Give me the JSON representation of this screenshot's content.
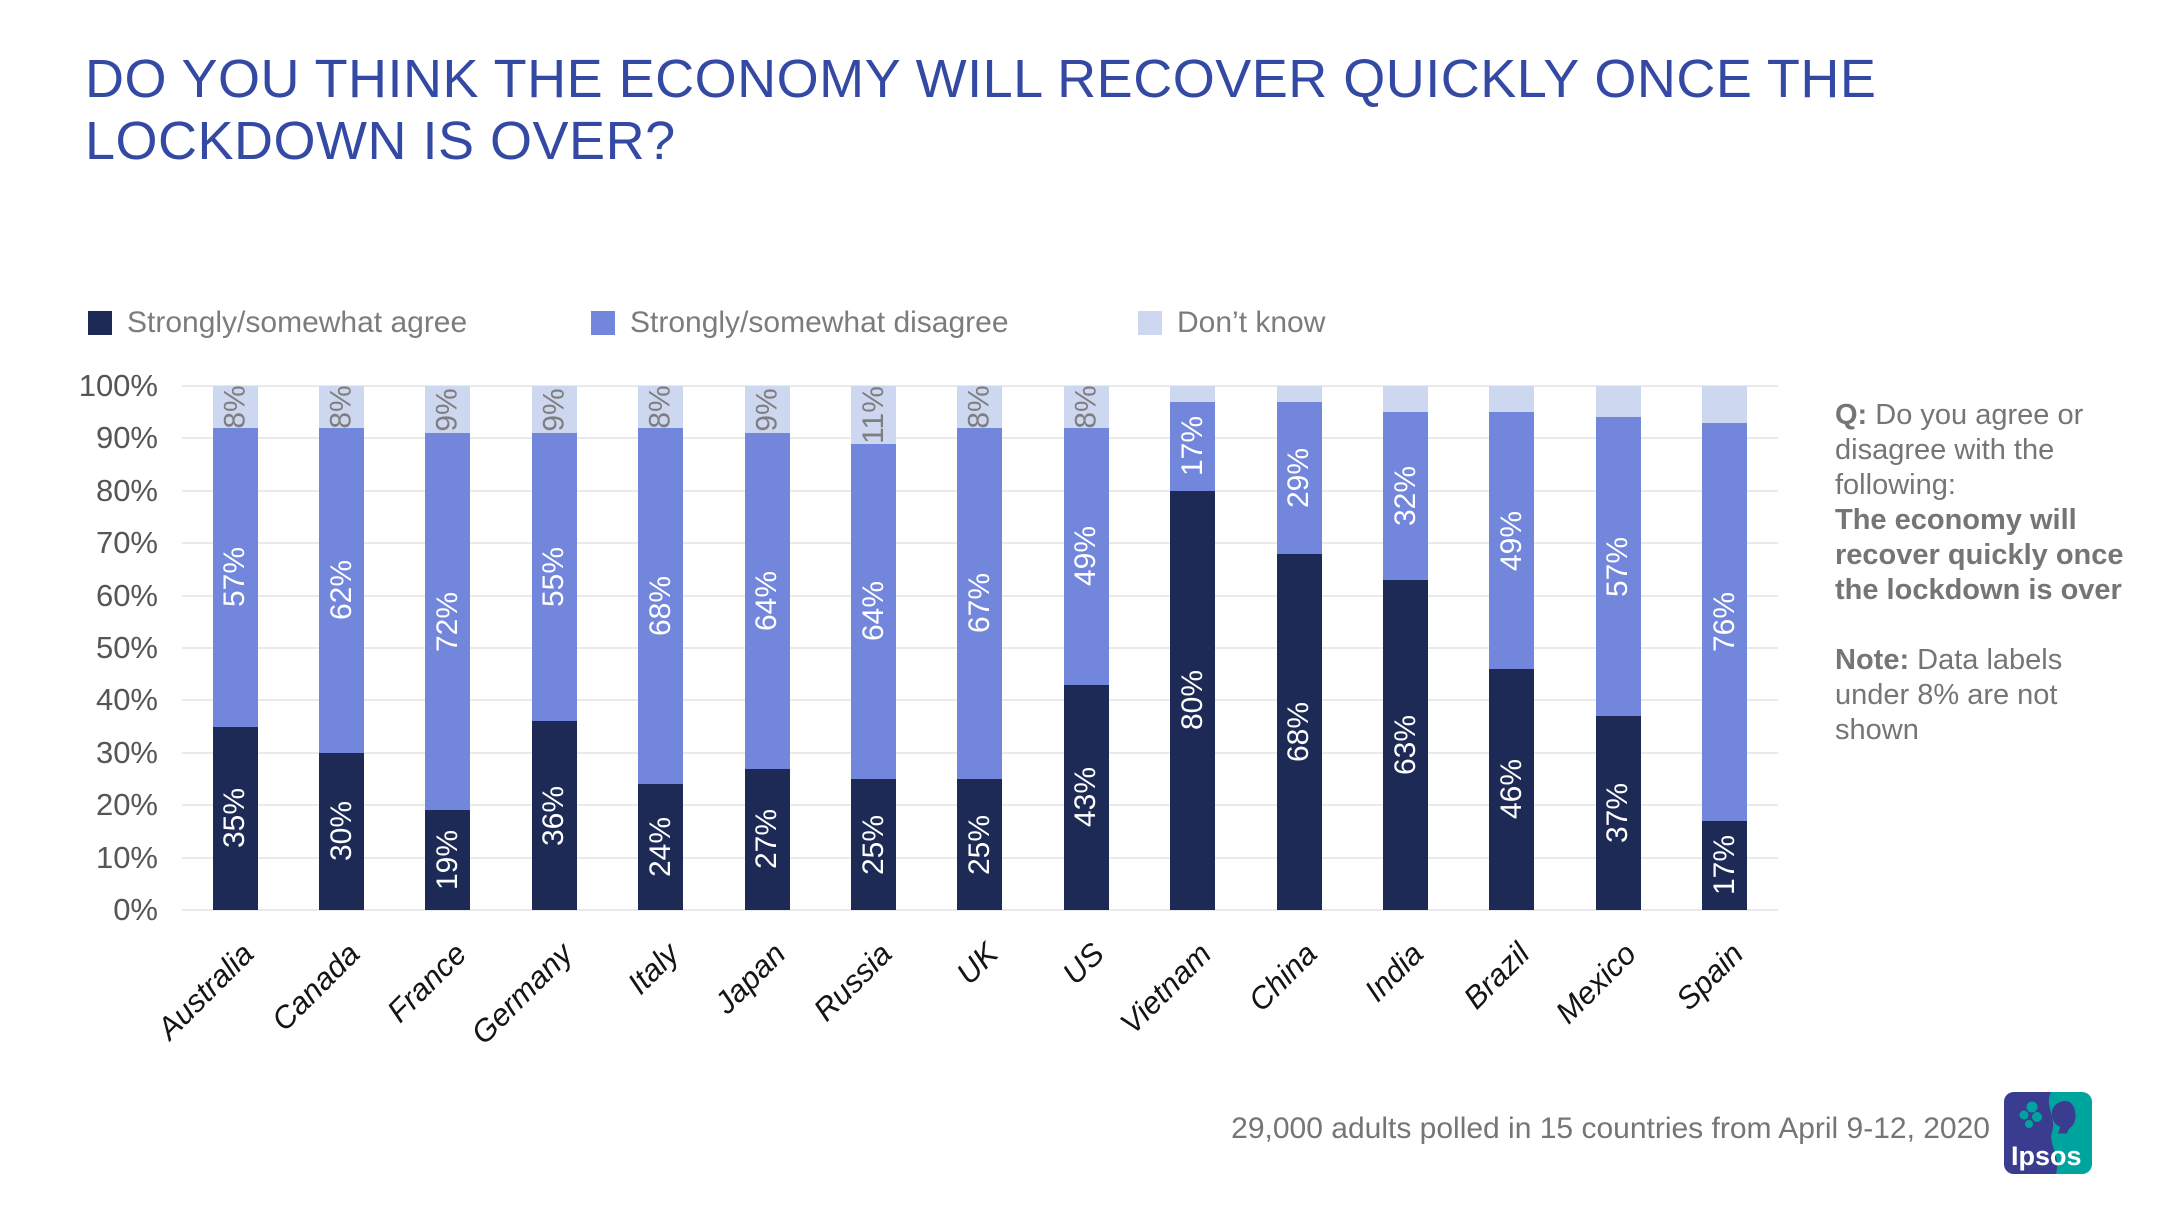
{
  "title": {
    "line1": "DO YOU THINK THE ECONOMY WILL RECOVER QUICKLY ONCE THE",
    "line2": "LOCKDOWN IS OVER?",
    "color": "#3449A4"
  },
  "chart_data": {
    "type": "bar",
    "stacked": true,
    "title": "Do you think the economy will recover quickly once the lockdown is over?",
    "categories": [
      "Australia",
      "Canada",
      "France",
      "Germany",
      "Italy",
      "Japan",
      "Russia",
      "UK",
      "US",
      "Vietnam",
      "China",
      "India",
      "Brazil",
      "Mexico",
      "Spain"
    ],
    "series": [
      {
        "name": "Strongly/somewhat agree",
        "color": "#1C2A55",
        "label_color": "#FFFFFF",
        "values": [
          35,
          30,
          19,
          36,
          24,
          27,
          25,
          25,
          43,
          80,
          68,
          63,
          46,
          37,
          17
        ]
      },
      {
        "name": "Strongly/somewhat disagree",
        "color": "#7286DB",
        "label_color": "#FFFFFF",
        "values": [
          57,
          62,
          72,
          55,
          68,
          64,
          64,
          67,
          49,
          17,
          29,
          32,
          49,
          57,
          76
        ]
      },
      {
        "name": "Don’t know",
        "color": "#CDD7F0",
        "label_color": "#7E7E7E",
        "values": [
          8,
          8,
          9,
          9,
          8,
          9,
          11,
          8,
          8,
          3,
          3,
          5,
          5,
          6,
          7
        ]
      }
    ],
    "y_ticks": [
      "100%",
      "90%",
      "80%",
      "70%",
      "60%",
      "50%",
      "40%",
      "30%",
      "20%",
      "10%",
      "0%"
    ],
    "ylim": [
      0,
      100
    ],
    "grid": true,
    "legend_position": "top",
    "value_suffix": "%",
    "min_label_value": 8
  },
  "side_note": {
    "q_prefix": "Q:",
    "q_text": " Do you agree or disagree with the following:",
    "statement": "The economy will recover quickly once the lockdown is over",
    "note_prefix": "Note:",
    "note_text": " Data labels under 8% are not shown"
  },
  "footer": {
    "source": "29,000 adults polled in 15 countries from April 9-12, 2020",
    "logo_text": "Ipsos",
    "logo_navy": "#3A3D8F",
    "logo_teal": "#00A49E"
  }
}
